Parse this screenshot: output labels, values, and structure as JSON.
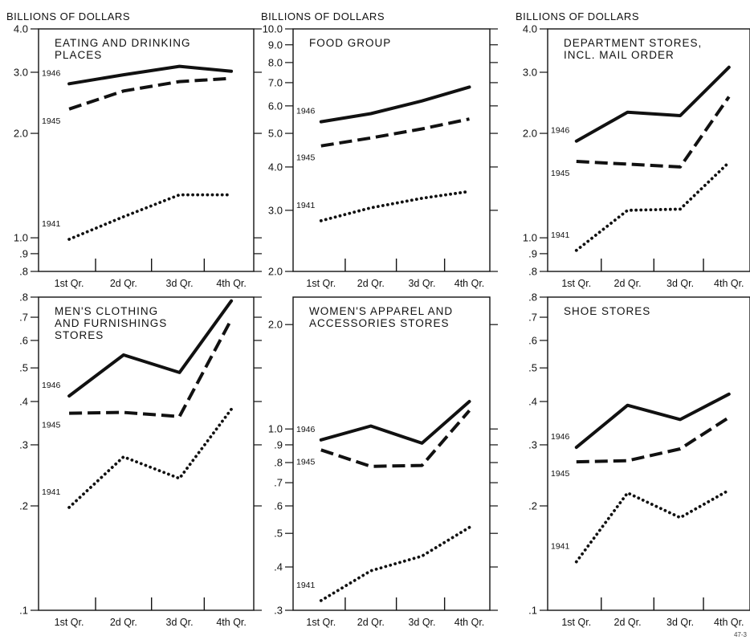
{
  "x_tick_labels": [
    "1st Qr.",
    "2d Qr.",
    "3d Qr.",
    "4th Qr."
  ],
  "footnote": "47-3",
  "chart_data": [
    {
      "type": "line",
      "unit_label": "BILLIONS OF DOLLARS",
      "title": [
        "EATING AND DRINKING",
        "PLACES"
      ],
      "y_scale": "log",
      "ylim": [
        0.8,
        4.0
      ],
      "y_ticks": [
        {
          "v": 4.0,
          "label": "4.0"
        },
        {
          "v": 3.0,
          "label": "3.0"
        },
        {
          "v": 2.0,
          "label": "2.0"
        },
        {
          "v": 1.0,
          "label": "1.0"
        },
        {
          "v": 0.9,
          "label": ".9"
        },
        {
          "v": 0.8,
          "label": ".8"
        }
      ],
      "categories": [
        "1st Qr.",
        "2d Qr.",
        "3d Qr.",
        "4th Qr."
      ],
      "series": [
        {
          "name": "1946",
          "style": "solid",
          "values": [
            2.78,
            2.95,
            3.12,
            3.02
          ]
        },
        {
          "name": "1945",
          "style": "dashed",
          "values": [
            2.35,
            2.65,
            2.82,
            2.88
          ]
        },
        {
          "name": "1941",
          "style": "dotted",
          "values": [
            0.99,
            1.15,
            1.33,
            1.33
          ]
        }
      ]
    },
    {
      "type": "line",
      "unit_label": "BILLIONS OF DOLLARS",
      "title": [
        "FOOD GROUP"
      ],
      "y_scale": "log",
      "ylim": [
        2.0,
        10.0
      ],
      "y_ticks": [
        {
          "v": 10.0,
          "label": "10.0"
        },
        {
          "v": 9.0,
          "label": "9.0"
        },
        {
          "v": 8.0,
          "label": "8.0"
        },
        {
          "v": 7.0,
          "label": "7.0"
        },
        {
          "v": 6.0,
          "label": "6.0"
        },
        {
          "v": 5.0,
          "label": "5.0"
        },
        {
          "v": 4.0,
          "label": "4.0"
        },
        {
          "v": 3.0,
          "label": "3.0"
        },
        {
          "v": 2.0,
          "label": "2.0"
        }
      ],
      "categories": [
        "1st Qr.",
        "2d Qr.",
        "3d Qr.",
        "4th Qr."
      ],
      "series": [
        {
          "name": "1946",
          "style": "solid",
          "values": [
            5.4,
            5.7,
            6.2,
            6.8
          ]
        },
        {
          "name": "1945",
          "style": "dashed",
          "values": [
            4.6,
            4.85,
            5.15,
            5.5
          ]
        },
        {
          "name": "1941",
          "style": "dotted",
          "values": [
            2.8,
            3.05,
            3.25,
            3.4
          ]
        }
      ]
    },
    {
      "type": "line",
      "unit_label": "BILLIONS OF DOLLARS",
      "title": [
        "DEPARTMENT STORES,",
        "INCL. MAIL ORDER"
      ],
      "y_scale": "log",
      "ylim": [
        0.8,
        4.0
      ],
      "y_ticks": [
        {
          "v": 4.0,
          "label": "4.0"
        },
        {
          "v": 3.0,
          "label": "3.0"
        },
        {
          "v": 2.0,
          "label": "2.0"
        },
        {
          "v": 1.0,
          "label": "1.0"
        },
        {
          "v": 0.9,
          "label": ".9"
        },
        {
          "v": 0.8,
          "label": ".8"
        }
      ],
      "categories": [
        "1st Qr.",
        "2d Qr.",
        "3d Qr.",
        "4th Qr."
      ],
      "series": [
        {
          "name": "1946",
          "style": "solid",
          "values": [
            1.9,
            2.3,
            2.25,
            3.1
          ]
        },
        {
          "name": "1945",
          "style": "dashed",
          "values": [
            1.66,
            1.63,
            1.6,
            2.55
          ]
        },
        {
          "name": "1941",
          "style": "dotted",
          "values": [
            0.92,
            1.2,
            1.21,
            1.65
          ]
        }
      ]
    },
    {
      "type": "line",
      "title": [
        "MEN'S CLOTHING",
        "AND FURNISHINGS",
        "STORES"
      ],
      "y_scale": "log",
      "ylim": [
        0.1,
        0.8
      ],
      "y_ticks": [
        {
          "v": 0.8,
          "label": ".8"
        },
        {
          "v": 0.7,
          "label": ".7"
        },
        {
          "v": 0.6,
          "label": ".6"
        },
        {
          "v": 0.5,
          "label": ".5"
        },
        {
          "v": 0.4,
          "label": ".4"
        },
        {
          "v": 0.3,
          "label": ".3"
        },
        {
          "v": 0.2,
          "label": ".2"
        },
        {
          "v": 0.1,
          "label": ".1"
        }
      ],
      "categories": [
        "1st Qr.",
        "2d Qr.",
        "3d Qr.",
        "4th Qr."
      ],
      "series": [
        {
          "name": "1946",
          "style": "solid",
          "values": [
            0.415,
            0.545,
            0.485,
            0.78
          ]
        },
        {
          "name": "1945",
          "style": "dashed",
          "values": [
            0.37,
            0.372,
            0.362,
            0.69
          ]
        },
        {
          "name": "1941",
          "style": "dotted",
          "values": [
            0.198,
            0.277,
            0.24,
            0.38
          ]
        }
      ]
    },
    {
      "type": "line",
      "title": [
        "WOMEN'S APPAREL AND",
        "ACCESSORIES STORES"
      ],
      "y_scale": "log",
      "ylim": [
        0.3,
        2.4
      ],
      "y_ticks": [
        {
          "v": 2.0,
          "label": "2.0"
        },
        {
          "v": 1.0,
          "label": "1.0"
        },
        {
          "v": 0.9,
          "label": ".9"
        },
        {
          "v": 0.8,
          "label": ".8"
        },
        {
          "v": 0.7,
          "label": ".7"
        },
        {
          "v": 0.6,
          "label": ".6"
        },
        {
          "v": 0.5,
          "label": ".5"
        },
        {
          "v": 0.4,
          "label": ".4"
        },
        {
          "v": 0.3,
          "label": ".3"
        }
      ],
      "categories": [
        "1st Qr.",
        "2d Qr.",
        "3d Qr.",
        "4th Qr."
      ],
      "series": [
        {
          "name": "1946",
          "style": "solid",
          "values": [
            0.93,
            1.02,
            0.91,
            1.2
          ]
        },
        {
          "name": "1945",
          "style": "dashed",
          "values": [
            0.87,
            0.78,
            0.785,
            1.13
          ]
        },
        {
          "name": "1941",
          "style": "dotted",
          "values": [
            0.32,
            0.39,
            0.43,
            0.52
          ]
        }
      ]
    },
    {
      "type": "line",
      "title": [
        "SHOE STORES"
      ],
      "y_scale": "log",
      "ylim": [
        0.1,
        0.8
      ],
      "y_ticks": [
        {
          "v": 0.8,
          "label": ".8"
        },
        {
          "v": 0.7,
          "label": ".7"
        },
        {
          "v": 0.6,
          "label": ".6"
        },
        {
          "v": 0.5,
          "label": ".5"
        },
        {
          "v": 0.4,
          "label": ".4"
        },
        {
          "v": 0.3,
          "label": ".3"
        },
        {
          "v": 0.2,
          "label": ".2"
        },
        {
          "v": 0.1,
          "label": ".1"
        }
      ],
      "categories": [
        "1st Qr.",
        "2d Qr.",
        "3d Qr.",
        "4th Qr."
      ],
      "series": [
        {
          "name": "1946",
          "style": "solid",
          "values": [
            0.295,
            0.39,
            0.355,
            0.42
          ]
        },
        {
          "name": "1945",
          "style": "dashed",
          "values": [
            0.268,
            0.27,
            0.292,
            0.36
          ]
        },
        {
          "name": "1941",
          "style": "dotted",
          "values": [
            0.138,
            0.218,
            0.185,
            0.222
          ]
        }
      ]
    }
  ]
}
